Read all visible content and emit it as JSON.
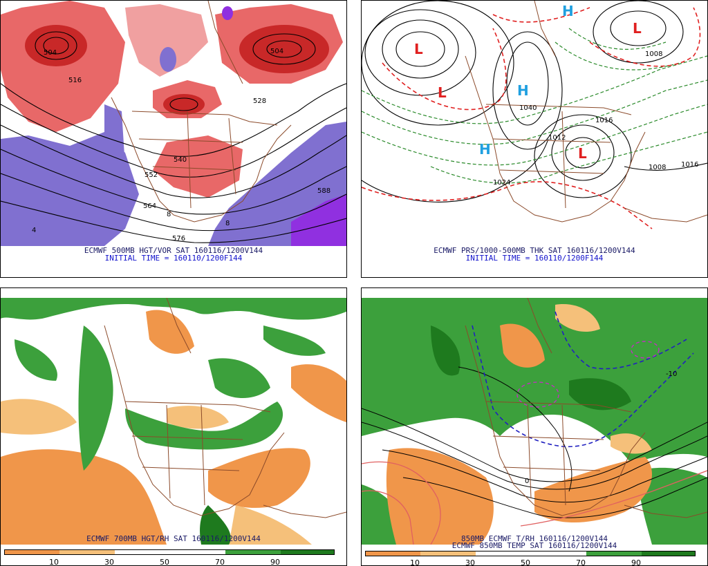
{
  "panels": {
    "top_left": {
      "caption_line1": "ECMWF 500MB HGT/VOR SAT 160116/1200V144",
      "caption_line2": "INITIAL TIME = 160110/1200F144",
      "contour_labels": [
        "504",
        "528",
        "540",
        "552",
        "564",
        "576",
        "588",
        "516",
        "4",
        "8"
      ]
    },
    "top_right": {
      "caption_line1": "ECMWF PRS/1000-500MB THK SAT 160116/1200V144",
      "caption_line2": "INITIAL TIME = 160110/1200F144",
      "pressure_labels": [
        "1016",
        "1008",
        "1024",
        "1040",
        "1012"
      ],
      "centers": [
        "L",
        "L",
        "H",
        "H",
        "L",
        "L",
        "H"
      ]
    },
    "bottom_left": {
      "caption_line1": "ECMWF 700MB HGT/RH SAT 160116/1200V144",
      "scale_labels": [
        "10",
        "30",
        "50",
        "70",
        "90"
      ]
    },
    "bottom_right": {
      "caption_line1": "850MB ECMWF T/RH 160116/1200V144",
      "caption_line2": "ECMWF 850MB TEMP SAT 160116/1200V144",
      "scale_labels": [
        "10",
        "30",
        "50",
        "70",
        "90"
      ],
      "contour_labels": [
        "0",
        "-10"
      ]
    }
  },
  "colors": {
    "vorticity_red": "#d83c3c",
    "vorticity_light": "#f0a0a0",
    "vorticity_blue": "#8070d0",
    "vorticity_purple": "#9030e0",
    "rh_green": "#3ca03c",
    "rh_green_dark": "#1e7a1e",
    "rh_orange": "#f0964a",
    "rh_orange_light": "#f5c07a",
    "borders": "#8b4a2a",
    "low_red": "#e02020",
    "high_blue": "#20a0e0",
    "thickness_green": "#2a8a2a",
    "thickness_red": "#e02020"
  }
}
